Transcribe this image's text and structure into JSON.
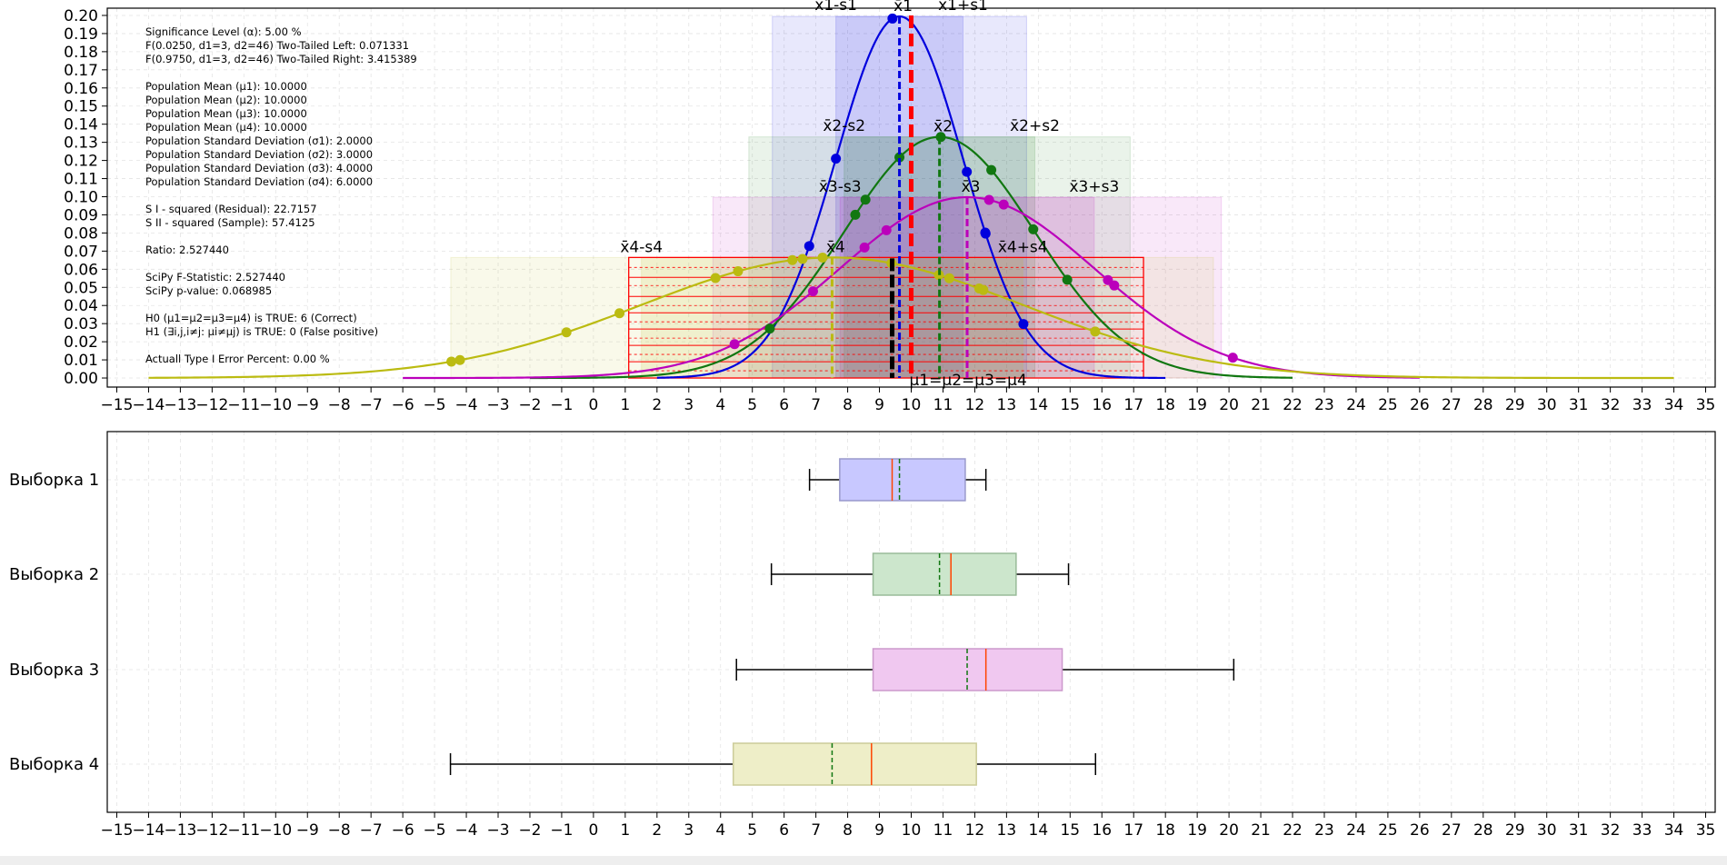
{
  "chart_data": [
    {
      "type": "line",
      "title": "",
      "xlabel": "",
      "ylabel": "",
      "xlim": [
        -15.3,
        35.3
      ],
      "ylim": [
        -0.005,
        0.204
      ],
      "grid": true,
      "xticks": [
        -15,
        -14,
        -13,
        -12,
        -11,
        -10,
        -9,
        -8,
        -7,
        -6,
        -5,
        -4,
        -3,
        -2,
        -1,
        0,
        1,
        2,
        3,
        4,
        5,
        6,
        7,
        8,
        9,
        10,
        11,
        12,
        13,
        14,
        15,
        16,
        17,
        18,
        19,
        20,
        21,
        22,
        23,
        24,
        25,
        26,
        27,
        28,
        29,
        30,
        31,
        32,
        33,
        34,
        35
      ],
      "yticks": [
        0.0,
        0.01,
        0.02,
        0.03,
        0.04,
        0.05,
        0.06,
        0.07,
        0.08,
        0.09,
        0.1,
        0.11,
        0.12,
        0.13,
        0.14,
        0.15,
        0.16,
        0.17,
        0.18,
        0.19,
        0.2
      ],
      "series": [
        {
          "name": "Выборка 1",
          "color": "#0000dd",
          "mean": 9.63,
          "sd": 2.0,
          "range": [
            2,
            18
          ],
          "samples": [
            7.63,
            9.41,
            11.75,
            12.34,
            6.79,
            13.53,
            12.33
          ]
        },
        {
          "name": "Выборка 2",
          "color": "#117711",
          "mean": 10.89,
          "sd": 3.0,
          "range": [
            -2,
            22
          ],
          "samples": [
            9.63,
            5.55,
            8.24,
            8.56,
            10.93,
            14.91,
            12.52,
            13.84
          ]
        },
        {
          "name": "Выборка 3",
          "color": "#bb00bb",
          "mean": 11.76,
          "sd": 4.0,
          "range": [
            -6,
            26
          ],
          "samples": [
            20.12,
            4.44,
            8.53,
            9.22,
            12.45,
            16.19,
            16.39,
            12.91,
            6.91
          ]
        },
        {
          "name": "Выборка 4",
          "color": "#bbbb11",
          "mean": 7.51,
          "sd": 6.0,
          "range": [
            -14,
            34
          ],
          "samples": [
            -4.47,
            -4.2,
            -0.85,
            0.82,
            3.84,
            4.55,
            6.26,
            7.21,
            9.38,
            10.87,
            11.2,
            12.14,
            12.27,
            15.79,
            6.58
          ]
        }
      ],
      "mean_lines": [
        {
          "label": "x̄1",
          "x": 9.63,
          "color": "#0000dd"
        },
        {
          "label": "x̄2",
          "x": 10.89,
          "color": "#117711"
        },
        {
          "label": "x̄3",
          "x": 11.76,
          "color": "#bb00bb"
        },
        {
          "label": "x̄4",
          "x": 7.51,
          "color": "#bbbb11"
        },
        {
          "label": "μ1=μ2=μ3=μ4",
          "x": 10.0,
          "color": "#ff0000"
        }
      ],
      "sd_labels": [
        {
          "label": "x̄1-s1",
          "x": 7.63,
          "y": 0.2
        },
        {
          "label": "x̄1+s1",
          "x": 11.63,
          "y": 0.2
        },
        {
          "label": "x̄2-s2",
          "x": 7.89,
          "y": 0.1333
        },
        {
          "label": "x̄2+s2",
          "x": 13.89,
          "y": 0.1333
        },
        {
          "label": "x̄3-s3",
          "x": 7.76,
          "y": 0.0997
        },
        {
          "label": "x̄3+s3",
          "x": 15.76,
          "y": 0.0997
        },
        {
          "label": "x̄4-s4",
          "x": 1.51,
          "y": 0.0665
        },
        {
          "label": "x̄4+s4",
          "x": 13.51,
          "y": 0.0665
        }
      ],
      "annotations": [
        "Significance Level (α): 5.00 %",
        "F(0.0250, d1=3, d2=46) Two-Tailed Left: 0.071331",
        "F(0.9750, d1=3, d2=46) Two-Tailed Right: 3.415389",
        "",
        "Population Mean (μ1): 10.0000",
        "Population Mean (μ2): 10.0000",
        "Population Mean (μ3): 10.0000",
        "Population Mean (μ4): 10.0000",
        "Population Standard Deviation (σ1): 2.0000",
        "Population Standard Deviation (σ2): 3.0000",
        "Population Standard Deviation (σ3): 4.0000",
        "Population Standard Deviation (σ4): 6.0000",
        "",
        "S I - squared (Residual): 22.7157",
        "S II - squared (Sample): 57.4125",
        "",
        "Ratio: 2.527440",
        "",
        "SciPy F-Statistic: 2.527440",
        "SciPy p-value: 0.068985",
        "",
        "H0 (μ1=μ2=μ3=μ4) is TRUE: 6 (Correct)",
        "H1 (∃i,j,i≠j: μi≠μj) is TRUE: 0 (False positive)",
        "",
        "Actuall Type I Error Percent: 0.00 %"
      ]
    },
    {
      "type": "boxplot",
      "xlim": [
        -15.3,
        35.3
      ],
      "grid": true,
      "xticks": [
        -15,
        -14,
        -13,
        -12,
        -11,
        -10,
        -9,
        -8,
        -7,
        -6,
        -5,
        -4,
        -3,
        -2,
        -1,
        0,
        1,
        2,
        3,
        4,
        5,
        6,
        7,
        8,
        9,
        10,
        11,
        12,
        13,
        14,
        15,
        16,
        17,
        18,
        19,
        20,
        21,
        22,
        23,
        24,
        25,
        26,
        27,
        28,
        29,
        30,
        31,
        32,
        33,
        34,
        35
      ],
      "boxes": [
        {
          "label": "Выборка 1",
          "whisker_low": 6.8,
          "q1": 7.75,
          "median": 9.4,
          "mean": 9.63,
          "q3": 11.7,
          "whisker_high": 12.35,
          "fill": "#c8c8ff",
          "edge": "#9999cc"
        },
        {
          "label": "Выборка 2",
          "whisker_low": 5.6,
          "q1": 8.8,
          "median": 11.25,
          "mean": 10.89,
          "q3": 13.3,
          "whisker_high": 14.95,
          "fill": "#cce6cc",
          "edge": "#99bb99"
        },
        {
          "label": "Выборка 3",
          "whisker_low": 4.5,
          "q1": 8.8,
          "median": 12.35,
          "mean": 11.76,
          "q3": 14.75,
          "whisker_high": 20.15,
          "fill": "#f0c8f0",
          "edge": "#cc99cc"
        },
        {
          "label": "Выборка 4",
          "whisker_low": -4.5,
          "q1": 4.4,
          "median": 8.75,
          "mean": 7.51,
          "q3": 12.05,
          "whisker_high": 15.8,
          "fill": "#eeeec8",
          "edge": "#cccc99"
        }
      ]
    }
  ]
}
